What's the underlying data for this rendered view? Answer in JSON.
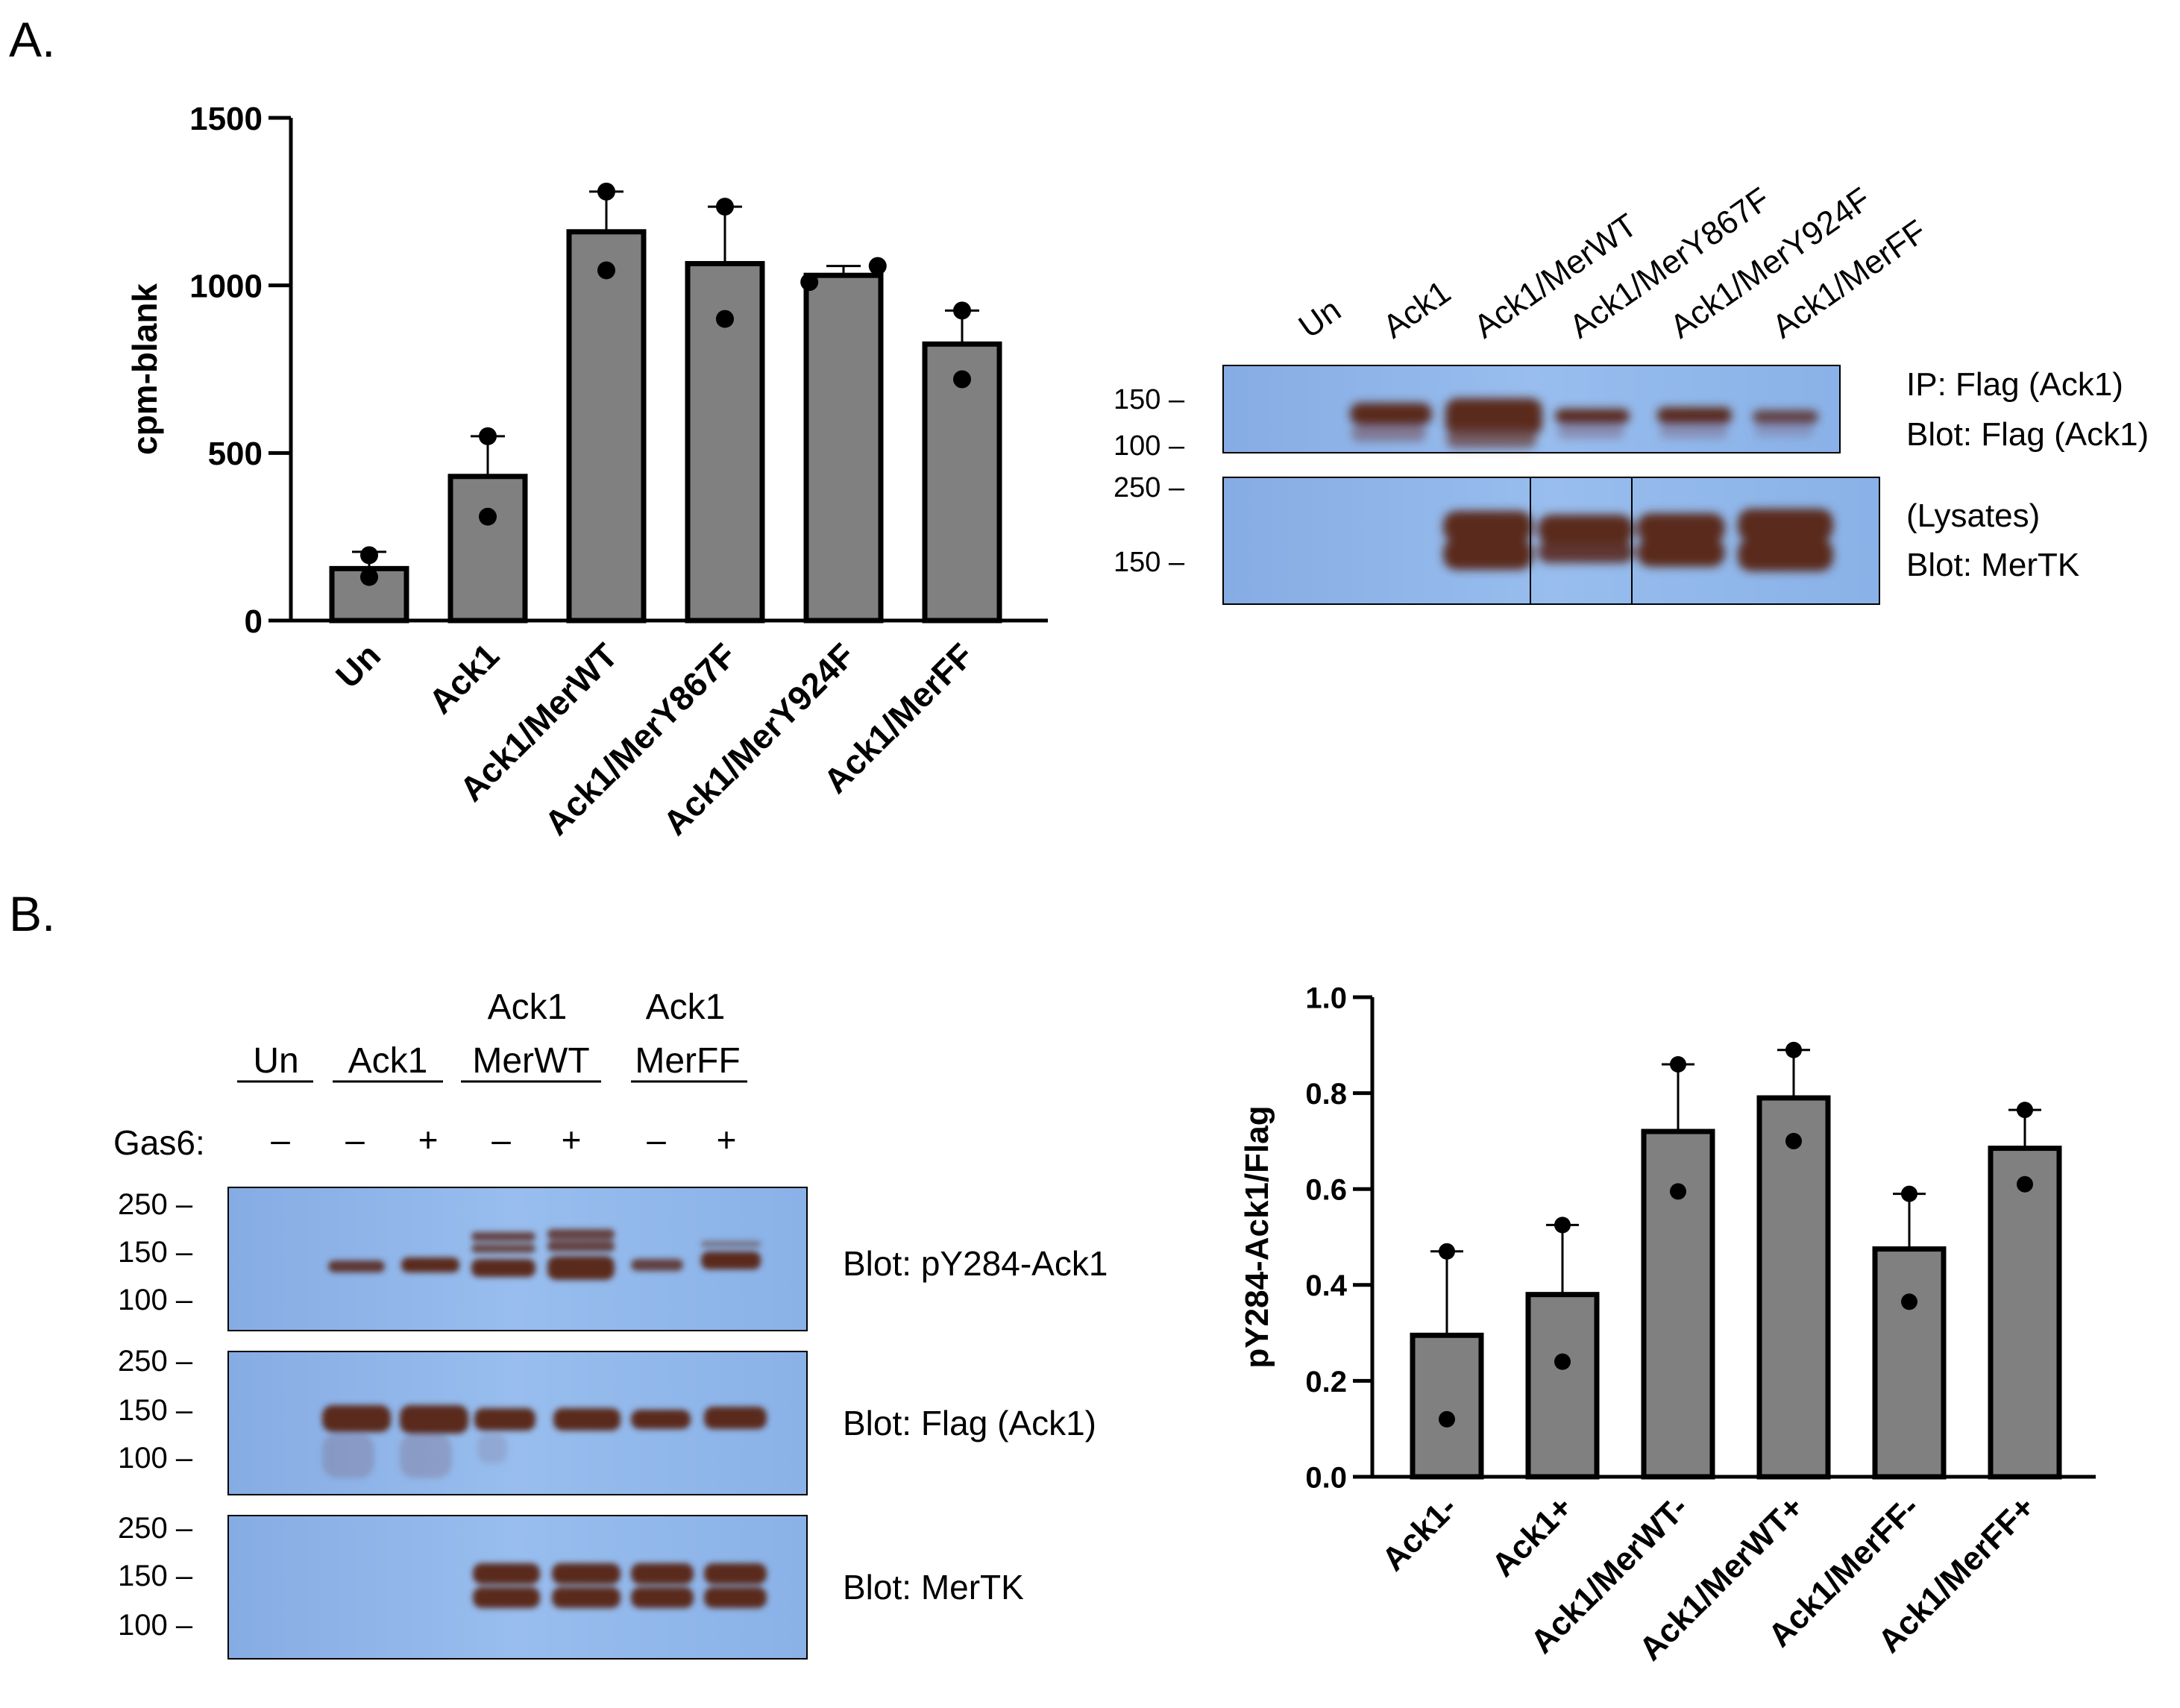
{
  "panels": {
    "a_label": "A.",
    "b_label": "B."
  },
  "chart_data": [
    {
      "type": "bar",
      "id": "chartA",
      "title": "",
      "ylabel": "cpm-blank",
      "xlabel": "",
      "ylim": [
        0,
        1500
      ],
      "yticks": [
        0,
        500,
        1000,
        1500
      ],
      "grid": false,
      "categories": [
        "Un",
        "Ack1",
        "Ack1/MerWT",
        "Ack1/MerY867F",
        "Ack1/MerY924F",
        "Ack1/MerFF"
      ],
      "values": [
        155,
        430,
        1160,
        1065,
        1030,
        825
      ],
      "error_upper": [
        205,
        550,
        1280,
        1235,
        1058,
        925
      ],
      "points": [
        [
          195,
          130
        ],
        [
          550,
          310
        ],
        [
          1280,
          1045
        ],
        [
          1235,
          900
        ],
        [
          1058,
          1010
        ],
        [
          925,
          720
        ]
      ]
    },
    {
      "type": "bar",
      "id": "chartB",
      "title": "",
      "ylabel": "pY284-Ack1/Flag",
      "xlabel": "",
      "ylim": [
        0,
        1.0
      ],
      "yticks": [
        "0.0",
        "0.2",
        "0.4",
        "0.6",
        "0.8",
        "1.0"
      ],
      "grid": false,
      "categories": [
        "Ack1-",
        "Ack1+",
        "Ack1/MerWT-",
        "Ack1/MerWT+",
        "Ack1/MerFF-",
        "Ack1/MerFF+"
      ],
      "values": [
        0.295,
        0.38,
        0.72,
        0.79,
        0.475,
        0.685
      ],
      "error_upper": [
        0.47,
        0.525,
        0.86,
        0.89,
        0.59,
        0.765
      ],
      "points": [
        [
          0.47,
          0.12
        ],
        [
          0.525,
          0.24
        ],
        [
          0.86,
          0.595
        ],
        [
          0.89,
          0.7
        ],
        [
          0.59,
          0.365
        ],
        [
          0.765,
          0.61
        ]
      ]
    }
  ],
  "blotA": {
    "lanes": [
      "Un",
      "Ack1",
      "Ack1/MerWT",
      "Ack1/MerY867F",
      "Ack1/MerY924F",
      "Ack1/MerFF"
    ],
    "top_markers": [
      "150 –",
      "100 –"
    ],
    "bottom_markers": [
      "250 –",
      "150 –"
    ],
    "top_label_1": "IP: Flag (Ack1)",
    "top_label_2": "Blot: Flag (Ack1)",
    "bottom_label_1": "(Lysates)",
    "bottom_label_2": "Blot: MerTK"
  },
  "blotB": {
    "groups": [
      {
        "line1": "",
        "line2": "Un"
      },
      {
        "line1": "",
        "line2": "Ack1"
      },
      {
        "line1": "Ack1",
        "line2": "MerWT"
      },
      {
        "line1": "Ack1",
        "line2": "MerFF"
      }
    ],
    "gas6_label": "Gas6:",
    "gas6_signs": [
      "–",
      "–",
      "+",
      "–",
      "+",
      "–",
      "+"
    ],
    "markers": [
      "250 –",
      "150 –",
      "100 –"
    ],
    "blot_labels": [
      "Blot: pY284-Ack1",
      "Blot: Flag (Ack1)",
      "Blot: MerTK"
    ]
  },
  "colors": {
    "bar_fill": "#808080",
    "blot_bg": "#8fb5e8",
    "band": "#5a2a1c"
  }
}
